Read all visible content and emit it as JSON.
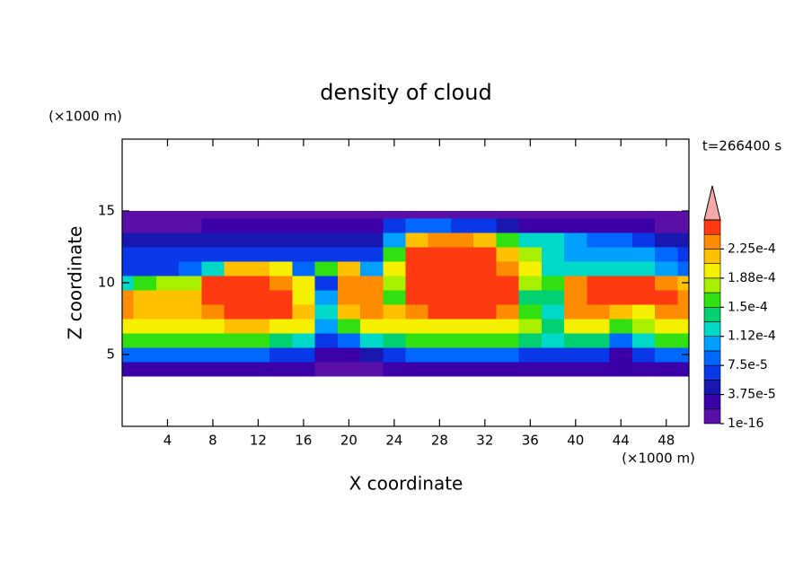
{
  "chart_data": {
    "type": "contour",
    "title": "density of cloud",
    "xlabel": "X coordinate",
    "ylabel": "Z coordinate",
    "x_unit": "(×1000 m)",
    "y_unit": "(×1000 m)",
    "time_label": "t=266400 s",
    "xlim": [
      0,
      50
    ],
    "ylim": [
      0,
      20
    ],
    "xticks": [
      4,
      8,
      12,
      16,
      20,
      24,
      28,
      32,
      36,
      40,
      44,
      48
    ],
    "yticks": [
      5,
      10,
      15
    ],
    "x": [
      0,
      2,
      4,
      6,
      8,
      10,
      12,
      14,
      16,
      18,
      20,
      22,
      24,
      26,
      28,
      30,
      32,
      34,
      36,
      38,
      40,
      42,
      44,
      46,
      48,
      50
    ],
    "z": [
      4,
      5,
      6,
      7,
      8,
      9,
      10,
      11,
      12,
      13,
      14,
      15
    ],
    "values": [
      [
        3e-05,
        3e-05,
        3e-05,
        3e-05,
        3e-05,
        2e-05,
        2e-05,
        3e-05,
        2e-05,
        1e-05,
        1e-05,
        1e-05,
        2e-05,
        3e-05,
        3e-05,
        3e-05,
        3e-05,
        3e-05,
        3e-05,
        2e-05,
        3e-05,
        3e-05,
        2e-05,
        2e-05,
        3e-05,
        3e-05
      ],
      [
        8e-05,
        8e-05,
        8e-05,
        8e-05,
        8e-05,
        8e-05,
        8e-05,
        7e-05,
        6e-05,
        3e-05,
        3e-05,
        4e-05,
        6e-05,
        8e-05,
        8e-05,
        8e-05,
        8e-05,
        8e-05,
        7e-05,
        6e-05,
        7e-05,
        7e-05,
        3e-05,
        6e-05,
        8e-05,
        8e-05
      ],
      [
        0.00015,
        0.00015,
        0.00015,
        0.00015,
        0.00015,
        0.00015,
        0.00015,
        0.00014,
        0.00013,
        6e-05,
        8e-05,
        0.00012,
        0.00014,
        0.00015,
        0.00015,
        0.00015,
        0.00015,
        0.00015,
        0.00014,
        0.00012,
        0.00014,
        0.00014,
        8e-05,
        0.00012,
        0.00015,
        0.00015
      ],
      [
        0.0002,
        0.0002,
        0.0002,
        0.0002,
        0.0002,
        0.00021,
        0.00021,
        0.0002,
        0.00019,
        0.0001,
        0.00016,
        0.0002,
        0.00019,
        0.0002,
        0.0002,
        0.0002,
        0.0002,
        0.0002,
        0.00018,
        0.00014,
        0.00019,
        0.0002,
        0.00016,
        0.00018,
        0.0002,
        0.0002
      ],
      [
        0.00023,
        0.00022,
        0.00022,
        0.00022,
        0.00024,
        0.00025,
        0.00025,
        0.00025,
        0.00022,
        0.00013,
        0.00022,
        0.00023,
        0.00021,
        0.00024,
        0.00025,
        0.00025,
        0.00025,
        0.00024,
        0.00016,
        0.00013,
        0.00023,
        0.00024,
        0.00022,
        0.0002,
        0.00024,
        0.00024
      ],
      [
        0.00024,
        0.00022,
        0.00021,
        0.00022,
        0.00025,
        0.00025,
        0.00025,
        0.00025,
        0.0002,
        0.00011,
        0.00024,
        0.00024,
        0.00015,
        0.00025,
        0.00025,
        0.00025,
        0.00025,
        0.00025,
        0.00014,
        0.00014,
        0.00024,
        0.00025,
        0.00025,
        0.00025,
        0.00025,
        0.00024
      ],
      [
        0.00012,
        0.00015,
        0.00017,
        0.00018,
        0.00025,
        0.00025,
        0.00025,
        0.00024,
        0.0002,
        7e-05,
        0.00023,
        0.00024,
        0.00017,
        0.00025,
        0.00025,
        0.00025,
        0.00025,
        0.00025,
        0.00018,
        0.00015,
        0.00024,
        0.00025,
        0.00025,
        0.00025,
        0.00024,
        0.00022
      ],
      [
        6e-05,
        6e-05,
        7e-05,
        8e-05,
        0.00013,
        0.00021,
        0.00022,
        0.0002,
        8e-05,
        0.00015,
        0.00021,
        0.0001,
        0.0002,
        0.00025,
        0.00025,
        0.00025,
        0.00025,
        0.00024,
        0.0002,
        0.00013,
        0.00013,
        0.00012,
        0.00012,
        0.00012,
        0.00011,
        8e-05
      ],
      [
        6e-05,
        6e-05,
        6e-05,
        6e-05,
        6e-05,
        7e-05,
        7e-05,
        7e-05,
        6e-05,
        7e-05,
        7e-05,
        6e-05,
        0.00015,
        0.00025,
        0.00025,
        0.00025,
        0.00025,
        0.00022,
        0.00018,
        0.00012,
        0.00011,
        0.0001,
        0.0001,
        0.0001,
        8e-05,
        6e-05
      ],
      [
        4e-05,
        4e-05,
        4e-05,
        4e-05,
        4e-05,
        4e-05,
        4e-05,
        4e-05,
        4e-05,
        4e-05,
        4e-05,
        4e-05,
        0.0001,
        0.00022,
        0.00023,
        0.00023,
        0.00022,
        0.00016,
        0.00013,
        0.00012,
        0.00011,
        9e-05,
        8e-05,
        6e-05,
        5e-05,
        4e-05
      ],
      [
        1e-05,
        1e-05,
        1e-05,
        1e-05,
        2e-05,
        2e-05,
        2e-05,
        2e-05,
        2e-05,
        2e-05,
        2e-05,
        2e-05,
        6e-05,
        8e-05,
        8e-05,
        7e-05,
        6e-05,
        4e-05,
        3e-05,
        3e-05,
        2e-05,
        2e-05,
        2e-05,
        2e-05,
        1e-05,
        1e-05
      ],
      [
        1e-05,
        1e-05,
        1e-05,
        1e-05,
        1e-05,
        1e-05,
        1e-05,
        1e-05,
        1e-05,
        1e-05,
        1e-05,
        1e-05,
        1e-05,
        1e-05,
        1e-05,
        1e-05,
        1e-05,
        1e-05,
        1e-05,
        1e-05,
        1e-05,
        1e-05,
        1e-05,
        1e-05,
        1e-05,
        1e-05
      ]
    ],
    "colorbar": {
      "levels": [
        1e-16,
        1.875e-05,
        3.75e-05,
        5.625e-05,
        7.5e-05,
        9.375e-05,
        0.0001125,
        0.00013125,
        0.00015,
        0.00016875,
        0.0001875,
        0.00020625,
        0.000225,
        0.00024375,
        0.0002625
      ],
      "colors": [
        "#5a10a8",
        "#3c00a8",
        "#1818b0",
        "#0838e8",
        "#0068ff",
        "#00a0ff",
        "#00d8c8",
        "#00d070",
        "#30e010",
        "#a8f000",
        "#f4f000",
        "#ffc000",
        "#ff8c00",
        "#ff3a10"
      ],
      "extend_color": "#f4a8a8",
      "ticks": [
        {
          "value": 1e-16,
          "label": "1e-16"
        },
        {
          "value": 3.75e-05,
          "label": "3.75e-5"
        },
        {
          "value": 7.5e-05,
          "label": "7.5e-5"
        },
        {
          "value": 0.0001125,
          "label": "1.12e-4"
        },
        {
          "value": 0.00015,
          "label": "1.5e-4"
        },
        {
          "value": 0.0001875,
          "label": "1.88e-4"
        },
        {
          "value": 0.000225,
          "label": "2.25e-4"
        }
      ]
    }
  }
}
